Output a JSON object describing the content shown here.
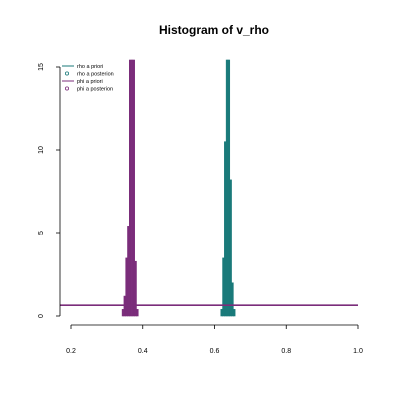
{
  "chart_data": {
    "type": "bar",
    "title": "Histogram of v_rho",
    "xlabel": "",
    "ylabel": "",
    "xlim": [
      0.2,
      1.0
    ],
    "ylim": [
      0,
      15
    ],
    "x_ticks": [
      "0.2",
      "0.4",
      "0.6",
      "0.8",
      "1.0"
    ],
    "y_ticks": [
      "0",
      "5",
      "10",
      "15"
    ],
    "legend_position": "top-left",
    "legend": [
      {
        "label": "rho a priori",
        "symbol": "line",
        "color": "#1a7a7a"
      },
      {
        "label": "rho a posterion",
        "symbol": "circle",
        "color": "#1a7a7a"
      },
      {
        "label": "phi a priori",
        "symbol": "line",
        "color": "#7b2d7b"
      },
      {
        "label": "phi a posterion",
        "symbol": "circle",
        "color": "#7b2d7b"
      }
    ],
    "series": [
      {
        "color": "#7b2d7b",
        "kind": "histogram",
        "bins": [
          {
            "x": 0.345,
            "y": 0.4
          },
          {
            "x": 0.35,
            "y": 1.2
          },
          {
            "x": 0.355,
            "y": 3.5
          },
          {
            "x": 0.36,
            "y": 5.4
          },
          {
            "x": 0.365,
            "y": 15.5
          },
          {
            "x": 0.37,
            "y": 15.5
          },
          {
            "x": 0.375,
            "y": 15.5
          },
          {
            "x": 0.38,
            "y": 3.3
          },
          {
            "x": 0.385,
            "y": 0.4
          }
        ],
        "bin_width": 0.005
      },
      {
        "color": "#1a7a7a",
        "kind": "histogram",
        "bins": [
          {
            "x": 0.62,
            "y": 0.4
          },
          {
            "x": 0.625,
            "y": 3.5
          },
          {
            "x": 0.63,
            "y": 10.5
          },
          {
            "x": 0.635,
            "y": 15.5
          },
          {
            "x": 0.64,
            "y": 15.5
          },
          {
            "x": 0.645,
            "y": 8.2
          },
          {
            "x": 0.65,
            "y": 2.0
          },
          {
            "x": 0.655,
            "y": 0.4
          }
        ],
        "bin_width": 0.005
      },
      {
        "color": "#7b2d7b",
        "kind": "line",
        "x": [
          0.2,
          1.0
        ],
        "y": [
          0.65,
          0.65
        ]
      }
    ]
  }
}
